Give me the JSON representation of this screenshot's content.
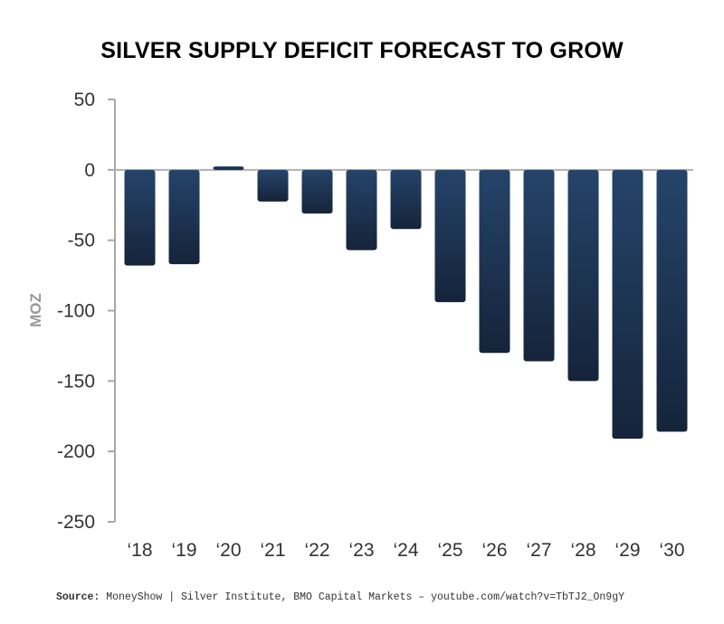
{
  "chart_data": {
    "type": "bar",
    "title": "SILVER SUPPLY DEFICIT FORECAST TO GROW",
    "xlabel": "",
    "ylabel": "MOZ",
    "ylim": [
      -250,
      50
    ],
    "yticks": [
      50,
      0,
      -50,
      -100,
      -150,
      -200,
      -250
    ],
    "categories": [
      "‘18",
      "‘19",
      "‘20",
      "‘21",
      "‘22",
      "‘23",
      "‘24",
      "‘25",
      "‘26",
      "‘27",
      "‘28",
      "‘29",
      "‘30"
    ],
    "values": [
      -68,
      -67,
      2.5,
      -22.5,
      -31,
      -57,
      -42,
      -94,
      -130,
      -136,
      -150,
      -191,
      -186
    ],
    "bar_color_top": "#25446a",
    "bar_color_bottom": "#15243a",
    "grid": false,
    "legend": "none"
  },
  "source": {
    "label": "Source:",
    "text": "MoneyShow | Silver Institute, BMO Capital Markets – youtube.com/watch?v=TbTJ2_On9gY"
  }
}
